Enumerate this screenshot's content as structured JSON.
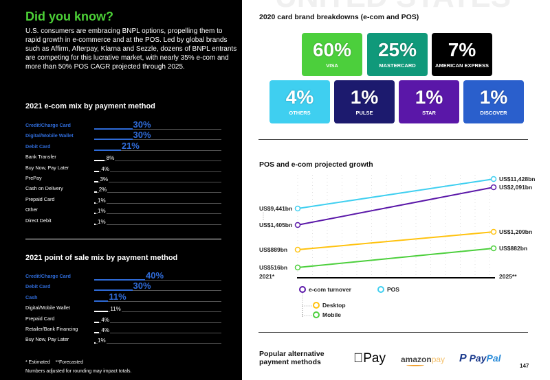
{
  "did_you_know": {
    "title": "Did you know?",
    "body": "U.S. consumers are embracing BNPL options, propelling them to rapid growth in e-commerce and at the POS. Led by global brands such as Affirm, Afterpay, Klarna and Sezzle, dozens of BNPL entrants are competing for this lucrative market, with nearly 35% e-com and more than 50% POS CAGR projected through 2025."
  },
  "ecom_mix": {
    "title": "2021 e-com mix by payment method",
    "rows": [
      {
        "label": "Credit/Charge Card",
        "value": 30,
        "text": "30%",
        "highlight": true
      },
      {
        "label": "Digital/Mobile Wallet",
        "value": 30,
        "text": "30%",
        "highlight": true
      },
      {
        "label": "Debit Card",
        "value": 21,
        "text": "21%",
        "highlight": true
      },
      {
        "label": "Bank Transfer",
        "value": 8,
        "text": "8%",
        "highlight": false
      },
      {
        "label": "Buy Now, Pay Later",
        "value": 4,
        "text": "4%",
        "highlight": false
      },
      {
        "label": "PrePay",
        "value": 3,
        "text": "3%",
        "highlight": false
      },
      {
        "label": "Cash on Delivery",
        "value": 2,
        "text": "2%",
        "highlight": false
      },
      {
        "label": "Prepaid Card",
        "value": 1,
        "text": "1%",
        "highlight": false
      },
      {
        "label": "Other",
        "value": 1,
        "text": "1%",
        "highlight": false
      },
      {
        "label": "Direct Debit",
        "value": 1,
        "text": "1%",
        "highlight": false
      }
    ]
  },
  "pos_mix": {
    "title": "2021 point of sale mix by payment method",
    "rows": [
      {
        "label": "Credit/Charge Card",
        "value": 40,
        "text": "40%",
        "highlight": true
      },
      {
        "label": "Debit Card",
        "value": 30,
        "text": "30%",
        "highlight": true
      },
      {
        "label": "Cash",
        "value": 11,
        "text": "11%",
        "highlight": true
      },
      {
        "label": "Digital/Mobile Wallet",
        "value": 11,
        "text": "11%",
        "highlight": false
      },
      {
        "label": "Prepaid Card",
        "value": 4,
        "text": "4%",
        "highlight": false
      },
      {
        "label": "Retailer/Bank Financing",
        "value": 4,
        "text": "4%",
        "highlight": false
      },
      {
        "label": "Buy Now, Pay Later",
        "value": 1,
        "text": "1%",
        "highlight": false
      }
    ]
  },
  "footnotes": {
    "estimated": "* Estimated",
    "forecasted": "**Forecasted",
    "rounding": "Numbers adjusted for rounding may impact totals."
  },
  "watermark": "UNITED STATES",
  "card_brands": {
    "title": "2020 card brand breakdowns (e-com and POS)",
    "cards": [
      {
        "pct": "60%",
        "name": "VISA",
        "color": "#4ccf3c"
      },
      {
        "pct": "25%",
        "name": "MASTERCARD",
        "color": "#10997a"
      },
      {
        "pct": "7%",
        "name": "AMERICAN EXPRESS",
        "color": "#000000"
      },
      {
        "pct": "4%",
        "name": "OTHERS",
        "color": "#3fcff0"
      },
      {
        "pct": "1%",
        "name": "PULSE",
        "color": "#1c1a6e"
      },
      {
        "pct": "1%",
        "name": "STAR",
        "color": "#5a17a8"
      },
      {
        "pct": "1%",
        "name": "DISCOVER",
        "color": "#2a5fcc"
      }
    ]
  },
  "growth": {
    "title": "POS and e-com projected growth",
    "x_start": "2021*",
    "x_end": "2025**",
    "series": [
      {
        "name": "POS",
        "start": "US$9,441bn",
        "end": "US$11,428bn",
        "color": "#3fcff0"
      },
      {
        "name": "e-com turnover",
        "start": "US$1,405bn",
        "end": "US$2,091bn",
        "color": "#5a17a8"
      },
      {
        "name": "Desktop",
        "start": "US$889bn",
        "end": "US$1,209bn",
        "color": "#ffc20e"
      },
      {
        "name": "Mobile",
        "start": "US$516bn",
        "end": "US$882bn",
        "color": "#4ccf3c"
      }
    ]
  },
  "alt_payments": {
    "title_line1": "Popular alternative",
    "title_line2": "payment methods",
    "apple": "Pay",
    "amazon_a": "amazon",
    "amazon_b": "pay",
    "paypal_a": "Pay",
    "paypal_b": "Pal"
  },
  "page_number": "147"
}
